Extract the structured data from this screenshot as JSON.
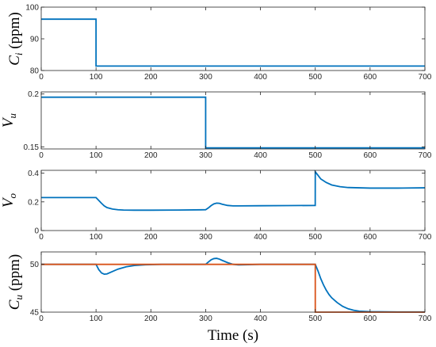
{
  "chart_data": [
    {
      "type": "line",
      "ylabel": "C_i (ppm)",
      "ylabel_main": "C",
      "ylabel_sub": "i",
      "ylabel_rest": " (ppm)",
      "xlim": [
        0,
        700
      ],
      "ylim": [
        80,
        100
      ],
      "xticks": [
        0,
        100,
        200,
        300,
        400,
        500,
        600,
        700
      ],
      "yticks": [
        80,
        90,
        100
      ],
      "series": [
        {
          "color": "#0072BD",
          "x": [
            0,
            100,
            100,
            700
          ],
          "y": [
            96.2,
            96.2,
            81.4,
            81.4
          ]
        }
      ]
    },
    {
      "type": "line",
      "ylabel": "V_u",
      "ylabel_main": "V",
      "ylabel_sub": "u",
      "ylabel_rest": "",
      "xlim": [
        0,
        700
      ],
      "ylim": [
        0.148,
        0.202
      ],
      "xticks": [
        0,
        100,
        200,
        300,
        400,
        500,
        600,
        700
      ],
      "yticks": [
        0.15,
        0.2
      ],
      "series": [
        {
          "color": "#0072BD",
          "x": [
            0,
            300,
            300,
            700
          ],
          "y": [
            0.197,
            0.197,
            0.149,
            0.149
          ]
        }
      ]
    },
    {
      "type": "line",
      "ylabel": "V_o",
      "ylabel_main": "V",
      "ylabel_sub": "o",
      "ylabel_rest": "",
      "xlim": [
        0,
        700
      ],
      "ylim": [
        0,
        0.42
      ],
      "xticks": [
        0,
        100,
        200,
        300,
        400,
        500,
        600,
        700
      ],
      "yticks": [
        0,
        0.2,
        0.4
      ],
      "series": [
        {
          "color": "#0072BD",
          "x": [
            0,
            100,
            105,
            110,
            115,
            120,
            130,
            140,
            150,
            170,
            200,
            250,
            300,
            305,
            310,
            315,
            320,
            325,
            330,
            340,
            350,
            360,
            400,
            450,
            499.9,
            500,
            505,
            510,
            520,
            530,
            545,
            560,
            600,
            650,
            700
          ],
          "y": [
            0.23,
            0.23,
            0.21,
            0.19,
            0.172,
            0.16,
            0.15,
            0.145,
            0.143,
            0.142,
            0.142,
            0.143,
            0.145,
            0.158,
            0.174,
            0.186,
            0.191,
            0.19,
            0.184,
            0.175,
            0.172,
            0.172,
            0.173,
            0.174,
            0.175,
            0.41,
            0.385,
            0.36,
            0.335,
            0.318,
            0.306,
            0.3,
            0.296,
            0.296,
            0.298
          ]
        }
      ]
    },
    {
      "type": "line",
      "xlabel": "Time (s)",
      "ylabel": "C_u (ppm)",
      "ylabel_main": "C",
      "ylabel_sub": "u",
      "ylabel_rest": " (ppm)",
      "xlim": [
        0,
        700
      ],
      "ylim": [
        45,
        51.3
      ],
      "xticks": [
        0,
        100,
        200,
        300,
        400,
        500,
        600,
        700
      ],
      "yticks": [
        45,
        50
      ],
      "series": [
        {
          "color": "#0072BD",
          "x": [
            0,
            100,
            105,
            110,
            115,
            120,
            130,
            140,
            155,
            170,
            190,
            220,
            250,
            300,
            305,
            310,
            315,
            320,
            325,
            330,
            340,
            350,
            360,
            370,
            400,
            450,
            500,
            505,
            510,
            515,
            520,
            525,
            530,
            540,
            550,
            560,
            570,
            580,
            600,
            650,
            700
          ],
          "y": [
            50,
            50,
            49.45,
            49.1,
            48.97,
            49.0,
            49.25,
            49.5,
            49.75,
            49.88,
            49.96,
            50.0,
            50.0,
            50.0,
            50.25,
            50.48,
            50.6,
            50.63,
            50.55,
            50.42,
            50.18,
            50.0,
            49.95,
            49.96,
            50.0,
            50.0,
            50.0,
            49.3,
            48.5,
            47.85,
            47.3,
            46.85,
            46.5,
            46.0,
            45.6,
            45.35,
            45.2,
            45.1,
            45.05,
            45.02,
            45.02
          ]
        },
        {
          "color": "#D95319",
          "x": [
            0,
            500,
            500,
            700
          ],
          "y": [
            50,
            50,
            45,
            45
          ]
        }
      ]
    }
  ]
}
